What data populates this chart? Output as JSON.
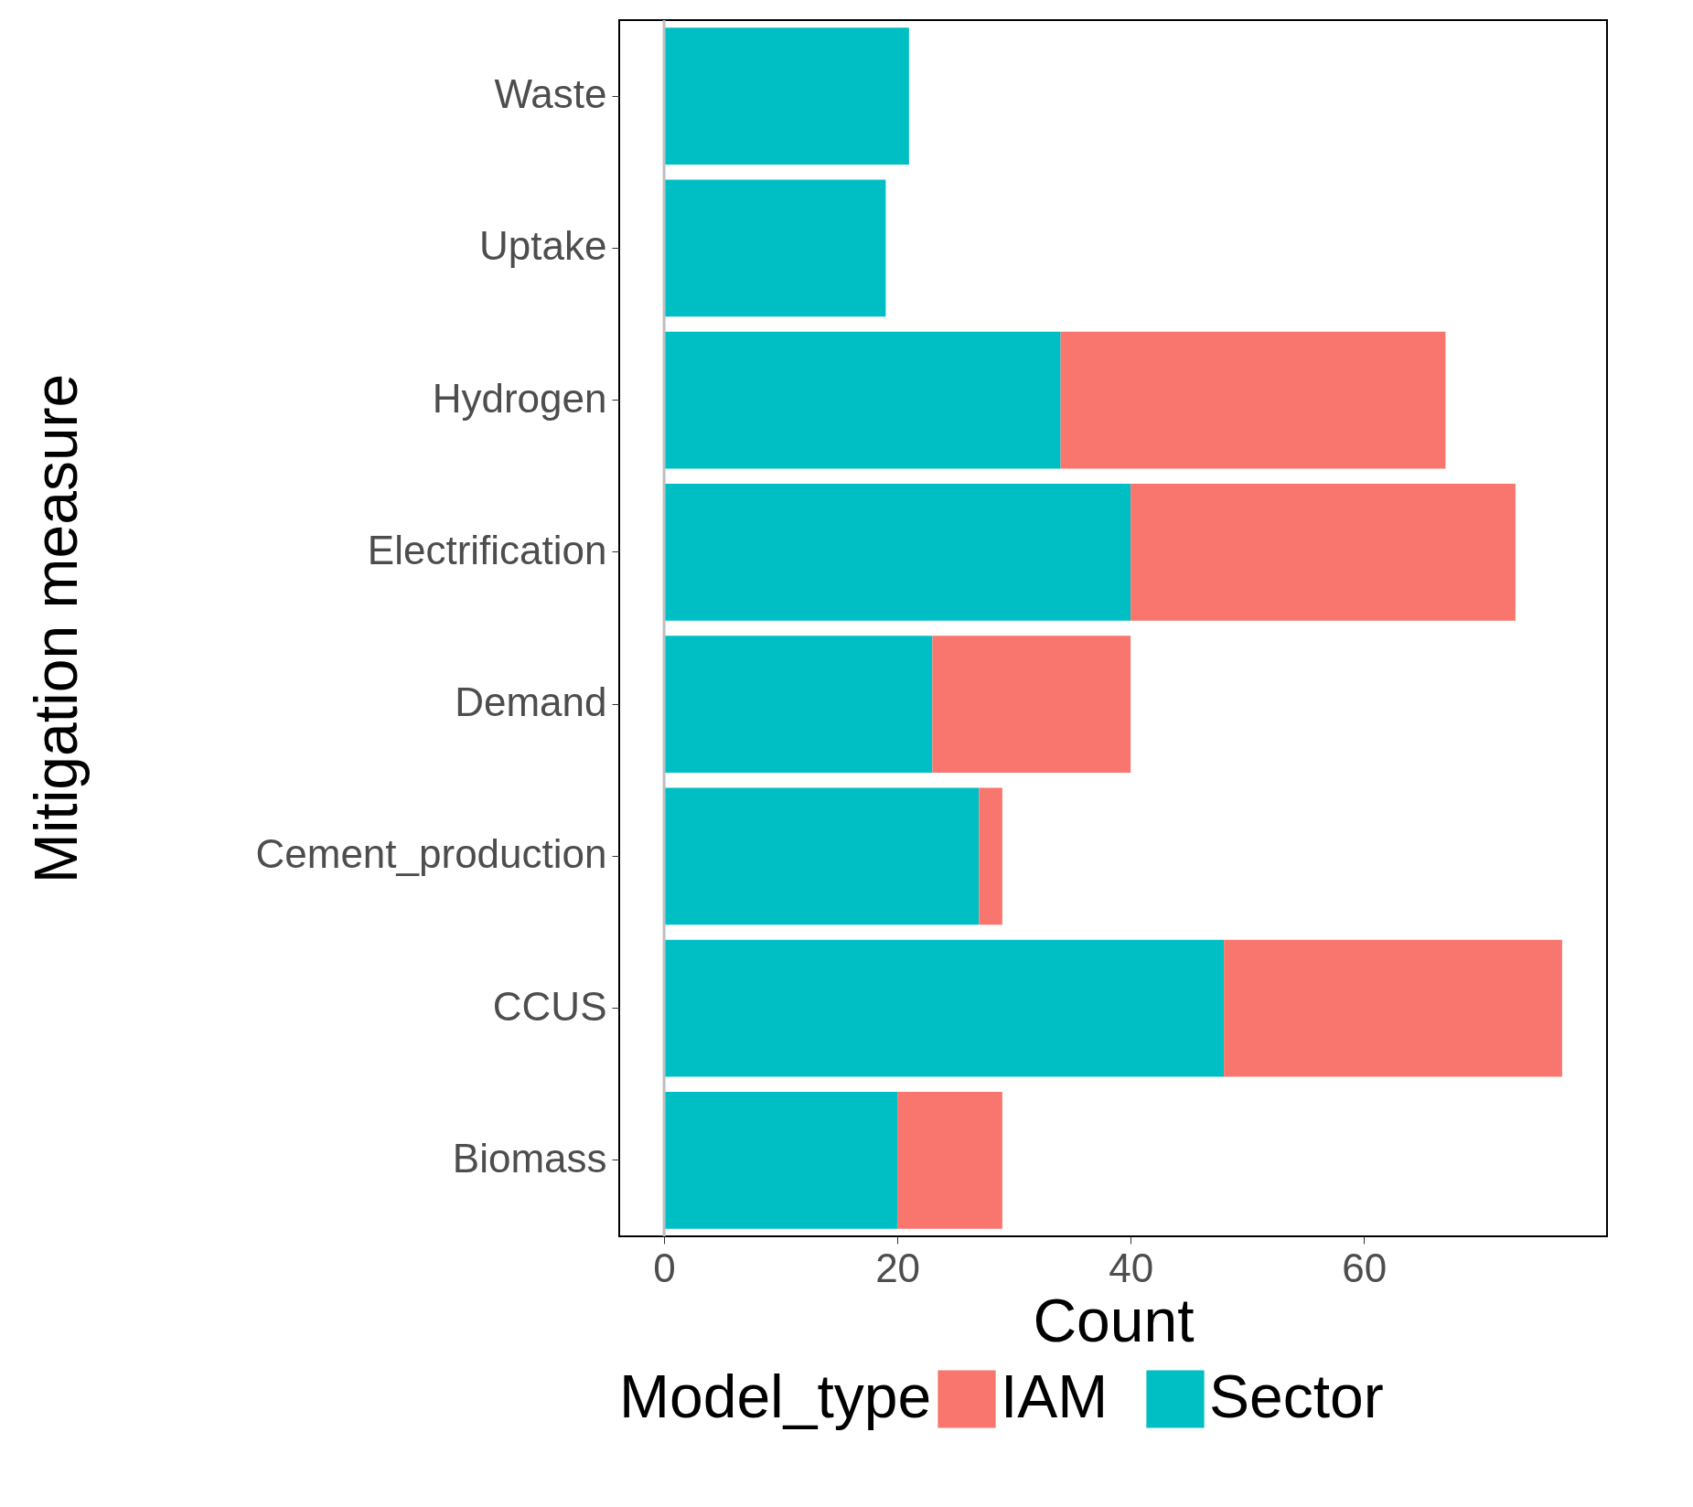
{
  "chart_data": {
    "type": "bar",
    "orientation": "horizontal",
    "stacked": true,
    "xlabel": "Count",
    "ylabel": "Mitigation measure",
    "legend_title": "Model_type",
    "legend": "bottom",
    "grid": false,
    "categories": [
      "Waste",
      "Uptake",
      "Hydrogen",
      "Electrification",
      "Demand",
      "Cement_production",
      "CCUS",
      "Biomass"
    ],
    "series": [
      {
        "name": "Sector",
        "color": "#00bfc4",
        "values": [
          21,
          19,
          34,
          40,
          23,
          27,
          48,
          20
        ]
      },
      {
        "name": "IAM",
        "color": "#f8766d",
        "values": [
          0,
          0,
          33,
          33,
          17,
          2,
          29,
          9
        ]
      }
    ],
    "xlim": [
      -3.85,
      80.85
    ],
    "xticks": [
      0,
      20,
      40,
      60
    ],
    "ref_lines": [
      {
        "axis": "x",
        "value": 0,
        "color": "#bebebe"
      }
    ]
  }
}
